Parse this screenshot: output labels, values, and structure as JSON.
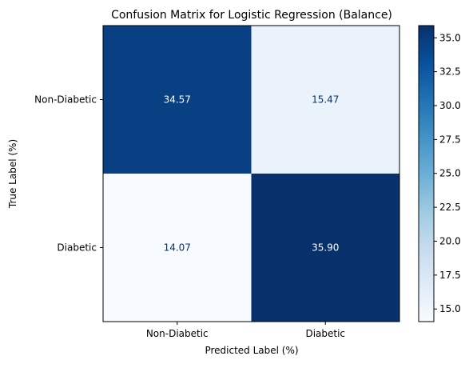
{
  "chart_data": {
    "type": "heatmap",
    "title": "Confusion Matrix for Logistic Regression (Balance)",
    "xlabel": "Predicted Label (%)",
    "ylabel": "True Label (%)",
    "x_categories": [
      "Non-Diabetic",
      "Diabetic"
    ],
    "y_categories": [
      "Non-Diabetic",
      "Diabetic"
    ],
    "values": [
      [
        34.57,
        15.47
      ],
      [
        14.07,
        35.9
      ]
    ],
    "value_labels": [
      [
        "34.57",
        "15.47"
      ],
      [
        "14.07",
        "35.90"
      ]
    ],
    "colormap": "Blues",
    "color_range": [
      14.07,
      35.9
    ],
    "colorbar_ticks": [
      15.0,
      17.5,
      20.0,
      22.5,
      25.0,
      27.5,
      30.0,
      32.5,
      35.0
    ],
    "colorbar_tick_labels": [
      "15.0",
      "17.5",
      "20.0",
      "22.5",
      "25.0",
      "27.5",
      "30.0",
      "32.5",
      "35.0"
    ],
    "colors": {
      "low": "#f7fbff",
      "high": "#08306b",
      "text_on_dark": "#ffffff",
      "text_on_light": "#08306b"
    }
  }
}
